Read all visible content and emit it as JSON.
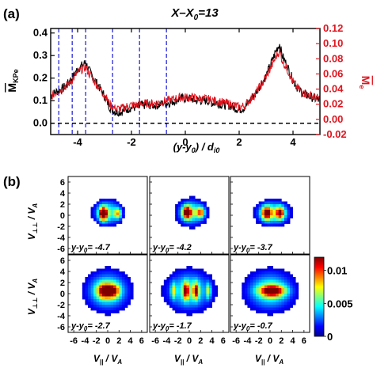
{
  "chart_data": [
    {
      "panel_label": "(a)",
      "type": "line",
      "title": "X–X0=13",
      "title_parts": {
        "main": "X–X",
        "sub": "0",
        "tail": "=13"
      },
      "xlabel_parts": {
        "a": "(y-y",
        "sub": "0",
        "b": ") / d",
        "sub2": "i0"
      },
      "ylabel_left": {
        "main": "M",
        "sub": "KPe"
      },
      "ylabel_right": {
        "main": "M",
        "sub": "e"
      },
      "xlim": [
        -5,
        5
      ],
      "ylim_left": [
        -0.05,
        0.42
      ],
      "ylim_right": [
        -0.02,
        0.12
      ],
      "x_ticks": [
        -4,
        -2,
        0,
        2,
        4
      ],
      "x_tick_labels": [
        "-4",
        "-2",
        "0",
        "2",
        "4"
      ],
      "y_ticks_left": [
        0.0,
        0.1,
        0.2,
        0.3,
        0.4
      ],
      "y_tick_labels_left": [
        "0.0",
        "0.1",
        "0.2",
        "0.3",
        "0.4"
      ],
      "y_ticks_right": [
        -0.02,
        0.0,
        0.02,
        0.04,
        0.06,
        0.08,
        0.1,
        0.12
      ],
      "y_tick_labels_right": [
        "-0.02",
        "0.00",
        "0.02",
        "0.04",
        "0.06",
        "0.08",
        "0.10",
        "0.12"
      ],
      "zero_line": 0,
      "vertical_markers_x": [
        -4.7,
        -4.2,
        -3.7,
        -2.7,
        -1.7,
        -0.7
      ],
      "series": [
        {
          "color": "#000000",
          "axis": "left",
          "x": [
            -5.0,
            -4.8,
            -4.6,
            -4.4,
            -4.2,
            -4.0,
            -3.8,
            -3.7,
            -3.6,
            -3.4,
            -3.2,
            -3.0,
            -2.8,
            -2.6,
            -2.4,
            -2.2,
            -2.0,
            -1.8,
            -1.6,
            -1.4,
            -1.2,
            -1.0,
            -0.8,
            -0.6,
            -0.4,
            -0.2,
            0.0,
            0.2,
            0.4,
            0.6,
            0.8,
            1.0,
            1.2,
            1.4,
            1.6,
            1.8,
            2.0,
            2.2,
            2.4,
            2.6,
            2.8,
            3.0,
            3.2,
            3.4,
            3.5,
            3.6,
            3.8,
            4.0,
            4.2,
            4.4,
            4.6,
            4.8,
            5.0
          ],
          "values": [
            0.12,
            0.14,
            0.15,
            0.17,
            0.2,
            0.24,
            0.26,
            0.27,
            0.24,
            0.2,
            0.16,
            0.12,
            0.07,
            0.05,
            0.05,
            0.06,
            0.07,
            0.07,
            0.08,
            0.08,
            0.08,
            0.08,
            0.09,
            0.09,
            0.1,
            0.11,
            0.11,
            0.11,
            0.1,
            0.1,
            0.1,
            0.09,
            0.09,
            0.08,
            0.08,
            0.07,
            0.06,
            0.07,
            0.1,
            0.13,
            0.17,
            0.21,
            0.27,
            0.33,
            0.35,
            0.3,
            0.25,
            0.19,
            0.15,
            0.13,
            0.12,
            0.11,
            0.1
          ]
        },
        {
          "color": "#e0141e",
          "axis": "right",
          "x": [
            -5.0,
            -4.8,
            -4.6,
            -4.4,
            -4.2,
            -4.0,
            -3.8,
            -3.7,
            -3.6,
            -3.4,
            -3.2,
            -3.0,
            -2.8,
            -2.6,
            -2.4,
            -2.2,
            -2.0,
            -1.8,
            -1.6,
            -1.4,
            -1.2,
            -1.0,
            -0.8,
            -0.6,
            -0.4,
            -0.2,
            0.0,
            0.2,
            0.4,
            0.6,
            0.8,
            1.0,
            1.2,
            1.4,
            1.6,
            1.8,
            2.0,
            2.2,
            2.4,
            2.6,
            2.8,
            3.0,
            3.2,
            3.4,
            3.5,
            3.6,
            3.8,
            4.0,
            4.2,
            4.4,
            4.6,
            4.8,
            5.0
          ],
          "values": [
            0.03,
            0.036,
            0.04,
            0.045,
            0.052,
            0.062,
            0.067,
            0.069,
            0.062,
            0.052,
            0.042,
            0.032,
            0.02,
            0.014,
            0.014,
            0.017,
            0.019,
            0.019,
            0.021,
            0.021,
            0.021,
            0.022,
            0.024,
            0.025,
            0.027,
            0.029,
            0.029,
            0.029,
            0.028,
            0.027,
            0.027,
            0.025,
            0.024,
            0.022,
            0.021,
            0.019,
            0.016,
            0.018,
            0.026,
            0.034,
            0.045,
            0.056,
            0.07,
            0.085,
            0.09,
            0.078,
            0.065,
            0.05,
            0.04,
            0.035,
            0.032,
            0.029,
            0.027
          ]
        }
      ]
    },
    {
      "panel_label": "(b)",
      "type": "heatmap",
      "grid": [
        2,
        3
      ],
      "xlabel": {
        "main": "V",
        "sub": "||",
        "mid": " / V",
        "sub2": "A"
      },
      "ylabel": {
        "main": "V",
        "sub": "⊥⊥",
        "mid": " / V",
        "sub2": "A"
      },
      "xlim": [
        -7,
        7
      ],
      "ylim": [
        -7,
        7
      ],
      "x_ticks": [
        -6,
        -4,
        -2,
        0,
        2,
        4,
        6
      ],
      "x_tick_labels": [
        "-6",
        "-4",
        "-2",
        "0",
        "2",
        "4",
        "6"
      ],
      "y_ticks": [
        -6,
        -4,
        -2,
        0,
        2,
        4,
        6
      ],
      "y_tick_labels": [
        "-6",
        "-4",
        "-2",
        "0",
        "2",
        "4",
        "6"
      ],
      "colorbar": {
        "range": [
          0,
          0.012
        ],
        "ticks": [
          0,
          0.005,
          0.01
        ],
        "tick_labels": [
          "0",
          "0.005",
          "0.01"
        ],
        "colors": [
          "#00008f",
          "#0000ff",
          "#0080ff",
          "#00ffff",
          "#80ff80",
          "#ffff00",
          "#ff8000",
          "#ff0000",
          "#800000"
        ]
      },
      "panels": [
        {
          "label_prefix": "y-y",
          "label_sub": "0",
          "label_value": "= -4.7",
          "y0": -4.7,
          "blobs": [
            {
              "x": 0.0,
              "y": 0.5,
              "sx": 3.1,
              "sy": 2.9,
              "a": 0.45
            },
            {
              "x": -0.8,
              "y": 0.3,
              "sx": 1.0,
              "sy": 1.6,
              "a": 1.0
            },
            {
              "x": 1.8,
              "y": 0.3,
              "sx": 0.9,
              "sy": 1.3,
              "a": 0.5
            }
          ]
        },
        {
          "label_prefix": "y-y",
          "label_sub": "0",
          "label_value": "= -4.2",
          "y0": -4.2,
          "blobs": [
            {
              "x": 0.4,
              "y": 0.5,
              "sx": 3.2,
              "sy": 3.0,
              "a": 0.45
            },
            {
              "x": -0.4,
              "y": 0.5,
              "sx": 1.1,
              "sy": 1.5,
              "a": 0.95
            },
            {
              "x": 2.0,
              "y": 0.5,
              "sx": 1.0,
              "sy": 1.3,
              "a": 0.6
            }
          ]
        },
        {
          "label_prefix": "y-y",
          "label_sub": "0",
          "label_value": "= -3.7",
          "y0": -3.7,
          "blobs": [
            {
              "x": 0.5,
              "y": 0.4,
              "sx": 3.8,
              "sy": 2.8,
              "a": 0.45
            },
            {
              "x": -0.6,
              "y": 0.4,
              "sx": 1.2,
              "sy": 1.6,
              "a": 0.85
            },
            {
              "x": 1.8,
              "y": 0.4,
              "sx": 1.1,
              "sy": 1.5,
              "a": 0.75
            }
          ]
        },
        {
          "label_prefix": "y-y",
          "label_sub": "0",
          "label_value": "= -2.7",
          "y0": -2.7,
          "blobs": [
            {
              "x": 0.0,
              "y": 0.5,
              "sx": 5.0,
              "sy": 4.6,
              "a": 0.45
            },
            {
              "x": -0.6,
              "y": 0.5,
              "sx": 1.8,
              "sy": 1.8,
              "a": 0.75
            },
            {
              "x": 1.0,
              "y": 0.5,
              "sx": 1.6,
              "sy": 1.7,
              "a": 0.6
            }
          ]
        },
        {
          "label_prefix": "y-y",
          "label_sub": "0",
          "label_value": "= -1.7",
          "y0": -1.7,
          "blobs": [
            {
              "x": 0.0,
              "y": 0.5,
              "sx": 5.2,
              "sy": 4.6,
              "a": 0.45
            },
            {
              "x": -0.6,
              "y": 0.5,
              "sx": 0.7,
              "sy": 2.0,
              "a": 0.75
            },
            {
              "x": 1.2,
              "y": 0.5,
              "sx": 0.7,
              "sy": 2.0,
              "a": 0.7
            },
            {
              "x": -2.8,
              "y": 0.5,
              "sx": 0.6,
              "sy": 2.0,
              "a": 0.4
            },
            {
              "x": 3.4,
              "y": 0.5,
              "sx": 0.6,
              "sy": 2.0,
              "a": 0.4
            }
          ]
        },
        {
          "label_prefix": "y-y",
          "label_sub": "0",
          "label_value": "= -0.7",
          "y0": -0.7,
          "blobs": [
            {
              "x": 0.0,
              "y": 0.5,
              "sx": 5.5,
              "sy": 4.6,
              "a": 0.45
            },
            {
              "x": 0.4,
              "y": 0.5,
              "sx": 3.0,
              "sy": 1.4,
              "a": 0.85
            }
          ]
        }
      ]
    }
  ]
}
